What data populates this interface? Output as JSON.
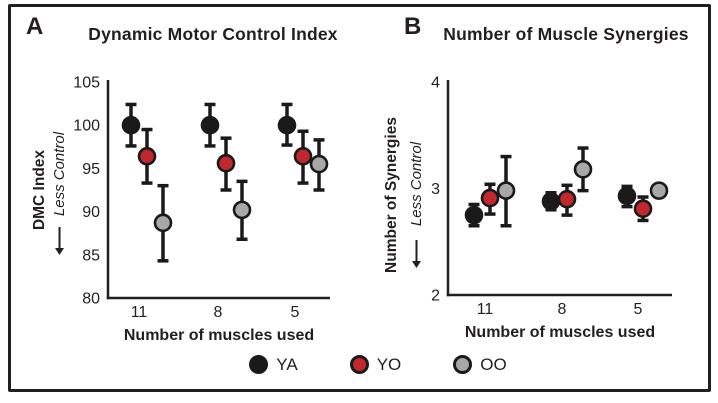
{
  "figure": {
    "legend": {
      "items": [
        {
          "label": "YA",
          "color": "#1a1a1a"
        },
        {
          "label": "YO",
          "color": "#c1272d"
        },
        {
          "label": "OO",
          "color": "#a8a8a8"
        }
      ]
    },
    "colors": {
      "axis": "#231f20",
      "marker_outline": "#1a1a1a",
      "background": "#ffffff"
    }
  },
  "chart_data": [
    {
      "type": "scatter",
      "panel_label": "A",
      "title": "Dynamic Motor Control Index",
      "xlabel": "Number of muscles used",
      "ylabel": "DMC Index",
      "ylabel_annotation": "Less Control",
      "categories": [
        "11",
        "8",
        "5"
      ],
      "ylim": [
        80,
        105
      ],
      "yticks": [
        80,
        85,
        90,
        95,
        100,
        105
      ],
      "grid": false,
      "legend_position": "bottom",
      "series": [
        {
          "name": "YA",
          "color": "#1a1a1a",
          "values": [
            100.0,
            100.0,
            100.0
          ],
          "lower": [
            97.6,
            97.6,
            97.7
          ],
          "upper": [
            102.4,
            102.4,
            102.4
          ]
        },
        {
          "name": "YO",
          "color": "#c1272d",
          "values": [
            96.4,
            95.6,
            96.4
          ],
          "lower": [
            93.3,
            92.5,
            93.3
          ],
          "upper": [
            99.5,
            98.5,
            99.3
          ]
        },
        {
          "name": "OO",
          "color": "#a8a8a8",
          "values": [
            88.7,
            90.2,
            95.5
          ],
          "lower": [
            84.3,
            86.8,
            92.5
          ],
          "upper": [
            93.0,
            93.5,
            98.3
          ]
        }
      ]
    },
    {
      "type": "scatter",
      "panel_label": "B",
      "title": "Number of Muscle Synergies",
      "xlabel": "Number of muscles used",
      "ylabel": "Number of Synergies",
      "ylabel_annotation": "Less Control",
      "categories": [
        "11",
        "8",
        "5"
      ],
      "ylim": [
        2,
        4
      ],
      "yticks": [
        2,
        3,
        4
      ],
      "grid": false,
      "legend_position": "bottom",
      "series": [
        {
          "name": "YA",
          "color": "#1a1a1a",
          "values": [
            2.75,
            2.88,
            2.93
          ],
          "lower": [
            2.65,
            2.8,
            2.83
          ],
          "upper": [
            2.85,
            2.96,
            3.02
          ]
        },
        {
          "name": "YO",
          "color": "#c1272d",
          "values": [
            2.91,
            2.9,
            2.81
          ],
          "lower": [
            2.76,
            2.75,
            2.7
          ],
          "upper": [
            3.04,
            3.03,
            2.92
          ]
        },
        {
          "name": "OO",
          "color": "#a8a8a8",
          "values": [
            2.98,
            3.18,
            2.98
          ],
          "lower": [
            2.65,
            2.98,
            2.98
          ],
          "upper": [
            3.3,
            3.38,
            2.98
          ]
        }
      ]
    }
  ]
}
